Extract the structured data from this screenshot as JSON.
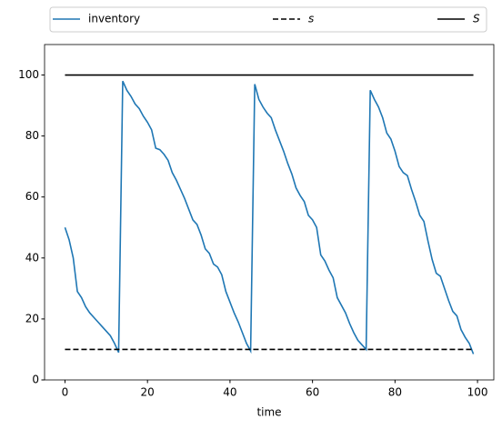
{
  "chart_data": {
    "type": "line",
    "xlabel": "time",
    "xlim": [
      -4.95,
      103.95
    ],
    "xticks": [
      0,
      20,
      40,
      60,
      80,
      100
    ],
    "ylim": [
      0,
      110
    ],
    "yticks": [
      0,
      20,
      40,
      60,
      80,
      100
    ],
    "grid": false,
    "legend": "top-expanded",
    "series": [
      {
        "name": "inventory",
        "color": "#1f77b4",
        "style": "solid",
        "x": [
          0,
          1,
          2,
          3,
          4,
          5,
          6,
          7,
          8,
          9,
          10,
          11,
          12,
          13,
          14,
          15,
          16,
          17,
          18,
          19,
          20,
          21,
          22,
          23,
          24,
          25,
          26,
          27,
          28,
          29,
          30,
          31,
          32,
          33,
          34,
          35,
          36,
          37,
          38,
          39,
          40,
          41,
          42,
          43,
          44,
          45,
          46,
          47,
          48,
          49,
          50,
          51,
          52,
          53,
          54,
          55,
          56,
          57,
          58,
          59,
          60,
          61,
          62,
          63,
          64,
          65,
          66,
          67,
          68,
          69,
          70,
          71,
          72,
          73,
          74,
          75,
          76,
          77,
          78,
          79,
          80,
          81,
          82,
          83,
          84,
          85,
          86,
          87,
          88,
          89,
          90,
          91,
          92,
          93,
          94,
          95,
          96,
          97,
          98,
          99
        ],
        "values": [
          50,
          46,
          40,
          29,
          27,
          24,
          22,
          20.5,
          19,
          17.5,
          16,
          14.5,
          12,
          9,
          98,
          95,
          93,
          90.5,
          89,
          86.5,
          84.5,
          82,
          76,
          75.5,
          74,
          72,
          68,
          65.5,
          62.5,
          59.5,
          56,
          52.5,
          51,
          47.5,
          43,
          41.5,
          38,
          37,
          34.5,
          29,
          25.5,
          22,
          19,
          15.5,
          12,
          9.5,
          97,
          92,
          89.5,
          87.5,
          86,
          82,
          78.5,
          75,
          71,
          67.5,
          63,
          60.5,
          58.5,
          54,
          52.5,
          50,
          41,
          39,
          36,
          33.5,
          27,
          24.5,
          22,
          18.5,
          15.5,
          13,
          11.5,
          10,
          95,
          92,
          89.5,
          86,
          81,
          79,
          75,
          70,
          68,
          67,
          62.5,
          58.5,
          54,
          52,
          45.5,
          39.5,
          35,
          34,
          30,
          26,
          22.5,
          21,
          16.5,
          14,
          12,
          8.5
        ]
      },
      {
        "name": "s",
        "color": "#000000",
        "style": "dashed",
        "x": [
          0,
          99
        ],
        "values": [
          10,
          10
        ]
      },
      {
        "name": "S",
        "color": "#000000",
        "style": "solid",
        "x": [
          0,
          99
        ],
        "values": [
          100,
          100
        ]
      }
    ]
  }
}
